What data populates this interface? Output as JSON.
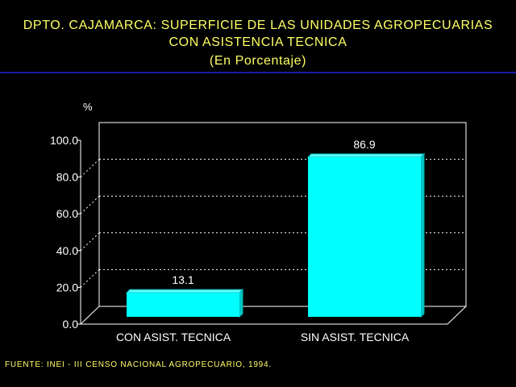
{
  "title_lines": [
    "DPTO. CAJAMARCA: SUPERFICIE DE LAS UNIDADES AGROPECUARIAS",
    "CON ASISTENCIA TECNICA",
    "(En Porcentaje)"
  ],
  "source": "FUENTE: INEI - III CENSO NACIONAL AGROPECUARIO, 1994.",
  "colors": {
    "background": "#000000",
    "title": "#ffff66",
    "rule": "#1a1aa8",
    "bar": "#00ffff",
    "axis": "#ffffff"
  },
  "chart_data": {
    "type": "bar",
    "title": "DPTO. CAJAMARCA: SUPERFICIE DE LAS UNIDADES AGROPECUARIAS CON ASISTENCIA TECNICA",
    "subtitle": "(En Porcentaje)",
    "xlabel": "",
    "ylabel": "%",
    "categories": [
      "CON ASIST. TECNICA",
      "SIN ASIST. TECNICA"
    ],
    "values": [
      13.1,
      86.9
    ],
    "value_labels": [
      "13.1",
      "86.9"
    ],
    "ylim": [
      0,
      100
    ],
    "y_ticks": [
      "0.0",
      "20.0",
      "40.0",
      "60.0",
      "80.0",
      "100.0"
    ],
    "grid": true,
    "legend": "none",
    "style": "3d"
  }
}
